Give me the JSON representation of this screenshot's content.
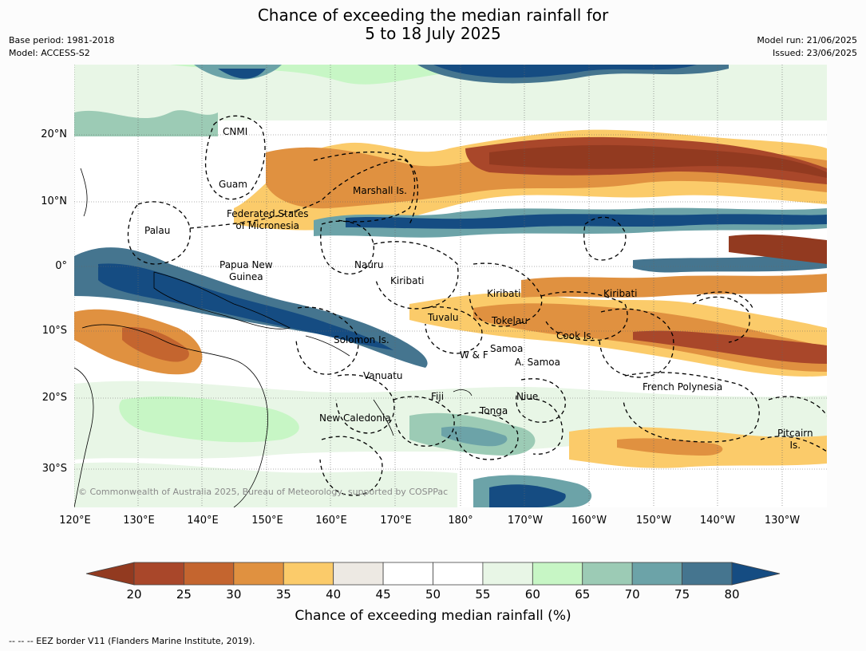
{
  "title_line1": "Chance of exceeding the median rainfall for",
  "title_line2": "5 to 18 July 2025",
  "meta": {
    "base_period": "Base period: 1981-2018",
    "model": "Model: ACCESS-S2",
    "model_run": "Model run: 21/06/2025",
    "issued": "Issued: 23/06/2025"
  },
  "lat_ticks": [
    "20°N",
    "10°N",
    "0°",
    "10°S",
    "20°S",
    "30°S"
  ],
  "lon_ticks": [
    "120°E",
    "130°E",
    "140°E",
    "150°E",
    "160°E",
    "170°E",
    "180°",
    "170°W",
    "160°W",
    "150°W",
    "140°W",
    "130°W"
  ],
  "regions": {
    "cnmi": "CNMI",
    "guam": "Guam",
    "marshall": "Marshall Is.",
    "fsm_1": "Federated States",
    "fsm_2": "of Micronesia",
    "palau": "Palau",
    "png_1": "Papua New",
    "png_2": "Guinea",
    "nauru": "Nauru",
    "kiribati_w": "Kiribati",
    "kiribati_c": "Kiribati",
    "kiribati_e": "Kiribati",
    "tuvalu": "Tuvalu",
    "tokelau": "Tokelau",
    "cook": "Cook Is.",
    "solomon": "Solomon Is.",
    "wf": "W & F",
    "samoa": "Samoa",
    "asamoa": "A. Samoa",
    "vanuatu": "Vanuatu",
    "fiji": "Fiji",
    "niue": "Niue",
    "tonga": "Tonga",
    "newcal": "New Caledonia",
    "frpoly": "French Polynesia",
    "pitcairn_1": "Pitcairn",
    "pitcairn_2": "Is."
  },
  "copyright": "© Commonwealth of Australia 2025, Bureau of Meteorology, supported by COSPPac",
  "colorbar": {
    "title": "Chance of exceeding median rainfall (%)",
    "labels": [
      "20",
      "25",
      "30",
      "35",
      "40",
      "45",
      "50",
      "55",
      "60",
      "65",
      "70",
      "75",
      "80"
    ],
    "colors": [
      "#a9472a",
      "#c4652f",
      "#e09140",
      "#fbcb6a",
      "#ede9e3",
      "#ffffff",
      "#ffffff",
      "#e8f6e6",
      "#c7f6c5",
      "#9ccbb5",
      "#6ca3a8",
      "#45758f"
    ],
    "low_extend_color": "#923a20",
    "high_extend_color": "#154c82"
  },
  "eez_note": "--  --  -- EEZ border V11 (Flanders Marine Institute, 2019)."
}
